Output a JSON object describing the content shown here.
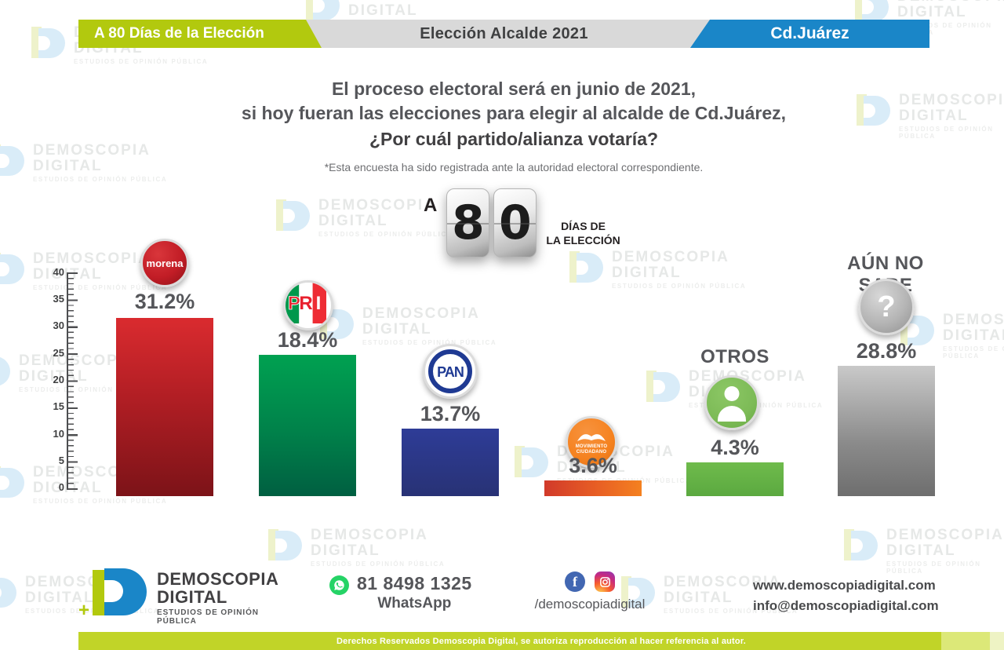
{
  "brand": {
    "line1": "DEMOSCOPIA",
    "line2": "DIGITAL",
    "tagline": "ESTUDIOS DE OPINIÓN PÚBLICA"
  },
  "header": {
    "left": "A 80 Días de la Elección",
    "center": "Elección Alcalde 2021",
    "right": "Cd.Juárez",
    "colors": {
      "left_bg": "#b2c90e",
      "center_bg": "#d9d9d9",
      "right_bg": "#1a86c8"
    }
  },
  "question": {
    "line1": "El proceso electoral será en junio de 2021,",
    "line2": "si hoy fueran las elecciones para elegir al alcalde de Cd.Juárez,",
    "line3": "¿Por cuál partido/alianza votaría?",
    "note": "*Esta encuesta ha sido registrada ante la autoridad electoral correspondiente."
  },
  "countdown": {
    "prefix": "A",
    "digits": [
      "8",
      "0"
    ],
    "suffix_line1": "DÍAS DE",
    "suffix_line2": "LA ELECCIÓN"
  },
  "chart_data": {
    "type": "bar",
    "title": "¿Por cuál partido/alianza votaría? — Elección Alcalde 2021, Cd.Juárez",
    "categories": [
      "Morena",
      "PRI",
      "PAN",
      "Movimiento Ciudadano",
      "Otros",
      "Aún no sabe"
    ],
    "values": [
      31.2,
      18.4,
      13.7,
      3.6,
      4.3,
      28.8
    ],
    "labels": [
      "31.2%",
      "18.4%",
      "13.7%",
      "3.6%",
      "4.3%",
      "28.8%"
    ],
    "ylim": [
      0,
      40
    ],
    "axis_ticks": [
      "40",
      "35",
      "30",
      "25",
      "20",
      "15",
      "10",
      "5",
      "0"
    ],
    "grid": false,
    "legend": false,
    "column_titles": {
      "otros": "OTROS",
      "aun_no_sabe": "AÚN NO SABE"
    },
    "bar_colors": {
      "morena": "#b11e24",
      "pri": "#00814a",
      "pan": "#2e3c97",
      "movimiento_ciudadano": "#f48120",
      "otros": "#6fbb4c",
      "aun_no_sabe": "#8a8a8a"
    }
  },
  "logos": {
    "morena": "morena",
    "pri": [
      "P",
      "R",
      "I"
    ],
    "pan": "PAN",
    "mc_line1": "MOVIMIENTO",
    "mc_line2": "CIUDADANO",
    "question_mark": "?"
  },
  "footer": {
    "whatsapp_number": "81 8498 1325",
    "whatsapp_label": "WhatsApp",
    "social_handle": "/demoscopiadigital",
    "website": "www.demoscopiadigital.com",
    "email": "info@demoscopiadigital.com"
  },
  "copyright": "Derechos Reservados Demoscopia Digital, se autoriza reproducción al hacer referencia al autor."
}
